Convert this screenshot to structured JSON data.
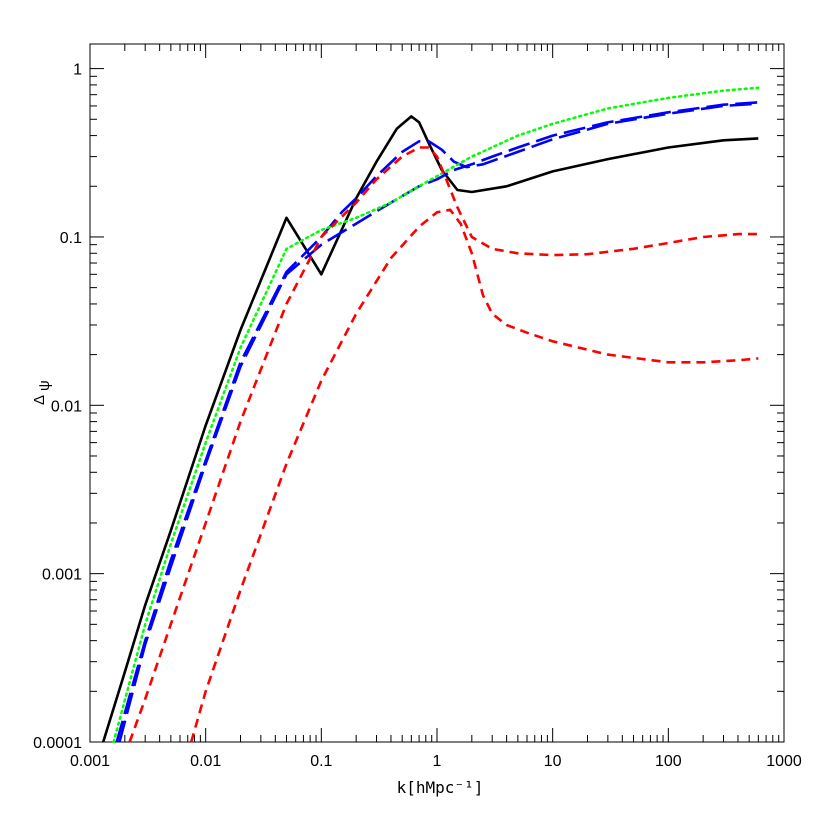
{
  "chart_data": {
    "type": "line",
    "title": "",
    "xlabel": "k[hMpc⁻¹]",
    "ylabel": "Δψ",
    "ylabel_main": "Δ",
    "ylabel_sub": "ψ",
    "x_scale": "log",
    "y_scale": "log",
    "xlim": [
      0.001,
      1000
    ],
    "ylim": [
      0.0001,
      1.4
    ],
    "x_ticks": [
      0.001,
      0.01,
      0.1,
      1,
      10,
      100,
      1000
    ],
    "x_tick_labels": [
      "0.001",
      "0.01",
      "0.1",
      "1",
      "10",
      "100",
      "1000"
    ],
    "y_ticks": [
      0.0001,
      0.001,
      0.01,
      0.1,
      1
    ],
    "y_tick_labels": [
      "0.0001",
      "0.001",
      "0.01",
      "0.1",
      "1"
    ],
    "grid": false,
    "legend": "none",
    "series": [
      {
        "color": "#000000",
        "style": "solid",
        "points": [
          [
            0.0013,
            0.0001
          ],
          [
            0.002,
            0.00026
          ],
          [
            0.003,
            0.00065
          ],
          [
            0.005,
            0.0018
          ],
          [
            0.01,
            0.0076
          ],
          [
            0.02,
            0.028
          ],
          [
            0.05,
            0.13
          ],
          [
            0.1,
            0.06
          ],
          [
            0.2,
            0.17
          ],
          [
            0.3,
            0.28
          ],
          [
            0.45,
            0.44
          ],
          [
            0.6,
            0.52
          ],
          [
            0.7,
            0.48
          ],
          [
            0.85,
            0.36
          ],
          [
            1.1,
            0.25
          ],
          [
            1.5,
            0.19
          ],
          [
            2,
            0.185
          ],
          [
            4,
            0.2
          ],
          [
            10,
            0.245
          ],
          [
            30,
            0.29
          ],
          [
            100,
            0.34
          ],
          [
            300,
            0.375
          ],
          [
            600,
            0.385
          ]
        ]
      },
      {
        "color": "#0000ff",
        "style": "long-dash",
        "points": [
          [
            0.0017,
            0.0001
          ],
          [
            0.003,
            0.0004
          ],
          [
            0.005,
            0.0012
          ],
          [
            0.01,
            0.0047
          ],
          [
            0.02,
            0.018
          ],
          [
            0.05,
            0.062
          ],
          [
            0.1,
            0.1
          ],
          [
            0.15,
            0.14
          ],
          [
            0.2,
            0.17
          ],
          [
            0.3,
            0.23
          ],
          [
            0.5,
            0.32
          ],
          [
            0.7,
            0.37
          ],
          [
            0.85,
            0.37
          ],
          [
            1.1,
            0.33
          ],
          [
            1.4,
            0.28
          ],
          [
            1.8,
            0.26
          ],
          [
            2.5,
            0.27
          ],
          [
            5,
            0.32
          ],
          [
            10,
            0.38
          ],
          [
            30,
            0.47
          ],
          [
            100,
            0.54
          ],
          [
            300,
            0.6
          ],
          [
            600,
            0.62
          ]
        ]
      },
      {
        "color": "#0000ff",
        "style": "long-dash",
        "points": [
          [
            0.0018,
            0.0001
          ],
          [
            0.003,
            0.00038
          ],
          [
            0.005,
            0.0011
          ],
          [
            0.01,
            0.0045
          ],
          [
            0.02,
            0.017
          ],
          [
            0.05,
            0.06
          ],
          [
            0.1,
            0.09
          ],
          [
            0.2,
            0.12
          ],
          [
            0.4,
            0.16
          ],
          [
            0.7,
            0.2
          ],
          [
            1,
            0.22
          ],
          [
            1.4,
            0.25
          ],
          [
            2,
            0.27
          ],
          [
            3,
            0.3
          ],
          [
            5,
            0.34
          ],
          [
            10,
            0.4
          ],
          [
            30,
            0.48
          ],
          [
            100,
            0.55
          ],
          [
            300,
            0.61
          ],
          [
            600,
            0.63
          ]
        ]
      },
      {
        "color": "#00ff00",
        "style": "dotted",
        "points": [
          [
            0.0016,
            0.0001
          ],
          [
            0.003,
            0.0005
          ],
          [
            0.005,
            0.0015
          ],
          [
            0.01,
            0.006
          ],
          [
            0.02,
            0.022
          ],
          [
            0.05,
            0.085
          ],
          [
            0.1,
            0.11
          ],
          [
            0.2,
            0.13
          ],
          [
            0.4,
            0.16
          ],
          [
            0.7,
            0.2
          ],
          [
            1,
            0.23
          ],
          [
            2,
            0.3
          ],
          [
            5,
            0.4
          ],
          [
            10,
            0.47
          ],
          [
            30,
            0.58
          ],
          [
            100,
            0.67
          ],
          [
            300,
            0.74
          ],
          [
            600,
            0.77
          ]
        ]
      },
      {
        "color": "#ff0000",
        "style": "dashed",
        "points": [
          [
            0.0022,
            0.0001
          ],
          [
            0.003,
            0.00018
          ],
          [
            0.005,
            0.0005
          ],
          [
            0.01,
            0.002
          ],
          [
            0.02,
            0.008
          ],
          [
            0.05,
            0.04
          ],
          [
            0.1,
            0.1
          ],
          [
            0.2,
            0.16
          ],
          [
            0.3,
            0.22
          ],
          [
            0.5,
            0.3
          ],
          [
            0.7,
            0.34
          ],
          [
            0.85,
            0.34
          ],
          [
            1,
            0.3
          ],
          [
            1.2,
            0.22
          ],
          [
            1.5,
            0.15
          ],
          [
            2,
            0.1
          ],
          [
            3,
            0.085
          ],
          [
            5,
            0.08
          ],
          [
            10,
            0.078
          ],
          [
            20,
            0.079
          ],
          [
            50,
            0.085
          ],
          [
            100,
            0.092
          ],
          [
            200,
            0.1
          ],
          [
            400,
            0.104
          ],
          [
            600,
            0.104
          ]
        ]
      },
      {
        "color": "#ff0000",
        "style": "dashed",
        "points": [
          [
            0.0075,
            0.0001
          ],
          [
            0.01,
            0.0002
          ],
          [
            0.02,
            0.0008
          ],
          [
            0.05,
            0.0045
          ],
          [
            0.1,
            0.014
          ],
          [
            0.2,
            0.035
          ],
          [
            0.4,
            0.075
          ],
          [
            0.7,
            0.115
          ],
          [
            1,
            0.14
          ],
          [
            1.3,
            0.145
          ],
          [
            1.6,
            0.12
          ],
          [
            2,
            0.08
          ],
          [
            2.5,
            0.045
          ],
          [
            3,
            0.035
          ],
          [
            4,
            0.03
          ],
          [
            6,
            0.027
          ],
          [
            10,
            0.024
          ],
          [
            30,
            0.02
          ],
          [
            100,
            0.018
          ],
          [
            200,
            0.018
          ],
          [
            400,
            0.0185
          ],
          [
            600,
            0.019
          ]
        ]
      }
    ]
  }
}
